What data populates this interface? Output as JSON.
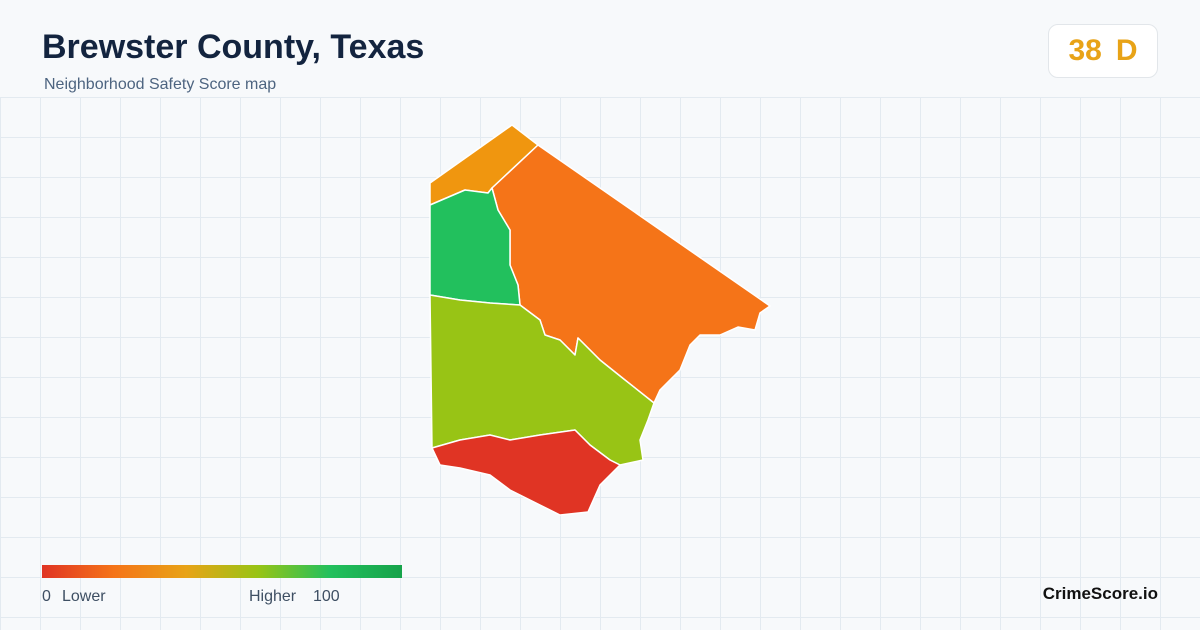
{
  "header": {
    "title": "Brewster County, Texas",
    "subtitle": "Neighborhood Safety Score map"
  },
  "score": {
    "value": 38,
    "grade": "D",
    "color": "#e8a317"
  },
  "map": {
    "regions": [
      {
        "color": "#f0960f"
      },
      {
        "color": "#f57418"
      },
      {
        "color": "#22c05d"
      },
      {
        "color": "#98c415"
      },
      {
        "color": "#e03424"
      }
    ]
  },
  "legend": {
    "min": 0,
    "low_label": "Lower",
    "high_label": "Higher",
    "max": 100,
    "colors": [
      "#e03424",
      "#f57418",
      "#e8a317",
      "#98c415",
      "#22c05d",
      "#16a34a"
    ]
  },
  "footer": {
    "brand": "CrimeScore.io"
  }
}
